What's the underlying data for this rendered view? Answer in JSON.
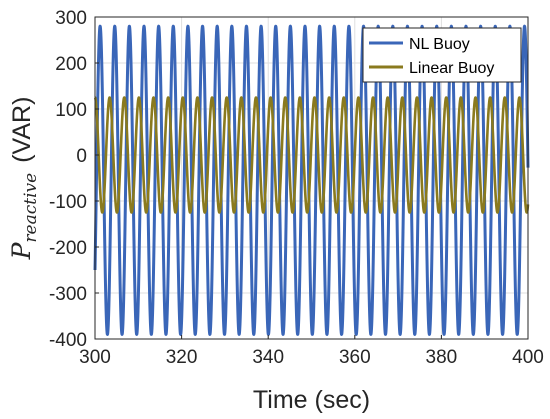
{
  "chart_data": {
    "type": "line",
    "xlabel": "Time (sec)",
    "ylabel_main": "P",
    "ylabel_sub": "reactive",
    "ylabel_unit": "(VAR)",
    "xlim": [
      300,
      400
    ],
    "ylim": [
      -400,
      300
    ],
    "xticks": [
      300,
      320,
      340,
      360,
      380,
      400
    ],
    "yticks": [
      -400,
      -300,
      -200,
      -100,
      0,
      100,
      200,
      300
    ],
    "grid": true,
    "legend_position": "top-right",
    "series": [
      {
        "name": "NL Buoy",
        "color": "#3a66b8",
        "waveform": "sine",
        "period_sec": 3.38,
        "max": 280,
        "min": -390,
        "value_at_x0": -250
      },
      {
        "name": "Linear Buoy",
        "color": "#8a7a1e",
        "waveform": "sine",
        "period_sec": 3.38,
        "max": 125,
        "min": -125,
        "value_at_x0": 125
      }
    ]
  }
}
